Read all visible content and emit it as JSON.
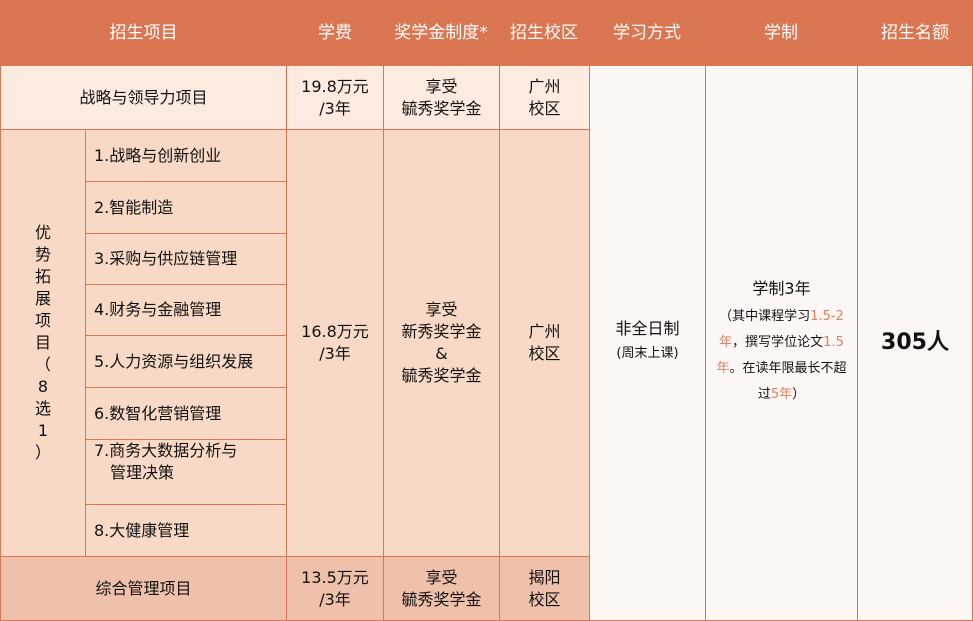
{
  "header": {
    "program": "招生项目",
    "fee": "学费",
    "scholarship": "奖学金制度*",
    "campus": "招生校区",
    "mode": "学习方式",
    "duration": "学制",
    "quota": "招生名额"
  },
  "row_strategy": {
    "name": "战略与领导力项目",
    "fee_line1": "19.8万元",
    "fee_line2": "/3年",
    "scholarship_line1": "享受",
    "scholarship_line2": "毓秀奖学金",
    "campus_line1": "广州",
    "campus_line2": "校区"
  },
  "row_advantage": {
    "group_label": [
      "优",
      "势",
      "拓",
      "展",
      "项",
      "目",
      "（",
      "8",
      "选",
      "1",
      "）"
    ],
    "items": [
      "1.战略与创新创业",
      "2.智能制造",
      "3.采购与供应链管理",
      "4.财务与金融管理",
      "5.人力资源与组织发展",
      "6.数智化营销管理",
      "7.商务大数据分析与",
      "8.大健康管理"
    ],
    "item7_line2": "管理决策",
    "fee_line1": "16.8万元",
    "fee_line2": "/3年",
    "scholarship_line1": "享受",
    "scholarship_line2": "新秀奖学金",
    "scholarship_line3": "&",
    "scholarship_line4": "毓秀奖学金",
    "campus_line1": "广州",
    "campus_line2": "校区"
  },
  "row_general": {
    "name": "综合管理项目",
    "fee_line1": "13.5万元",
    "fee_line2": "/3年",
    "scholarship_line1": "享受",
    "scholarship_line2": "毓秀奖学金",
    "campus_line1": "揭阳",
    "campus_line2": "校区"
  },
  "mode": {
    "main": "非全日制",
    "note": "(周末上课)"
  },
  "duration": {
    "main": "学制3年",
    "p1": "（其中课程学习",
    "h1": "1.5-2年",
    "p2": "，撰写学位论文",
    "h2": "1.5年",
    "p3": "。在读年限最长不超过",
    "h3": "5年",
    "p4": "）"
  },
  "quota": "305人",
  "colors": {
    "header": "#DB7652",
    "highlight": "#E08060"
  }
}
